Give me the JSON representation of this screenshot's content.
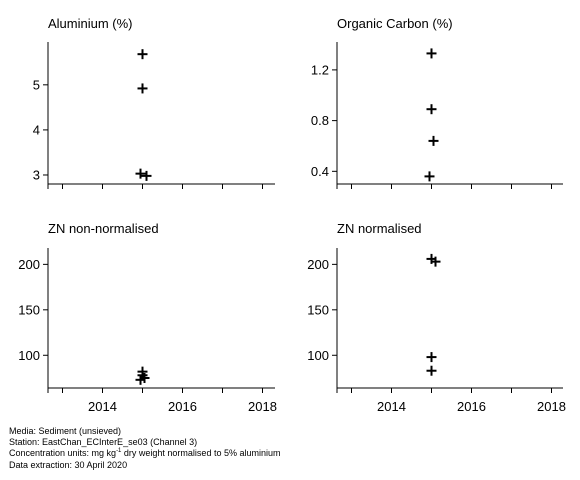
{
  "chart_data": [
    {
      "type": "scatter",
      "title": "Aluminium (%)",
      "xlabel": "",
      "ylabel": "",
      "xlim": [
        2012.6,
        2018.4
      ],
      "ylim": [
        2.8,
        5.95
      ],
      "yticks": [
        3,
        4,
        5
      ],
      "show_x_labels": false,
      "points": [
        {
          "x": 2015.0,
          "y": 5.68
        },
        {
          "x": 2015.0,
          "y": 4.92
        },
        {
          "x": 2014.95,
          "y": 3.03
        },
        {
          "x": 2015.1,
          "y": 2.98
        }
      ]
    },
    {
      "type": "scatter",
      "title": "Organic Carbon (%)",
      "xlabel": "",
      "ylabel": "",
      "xlim": [
        2012.6,
        2018.4
      ],
      "ylim": [
        0.3,
        1.42
      ],
      "yticks": [
        0.4,
        0.8,
        1.2
      ],
      "show_x_labels": false,
      "points": [
        {
          "x": 2015.0,
          "y": 1.33
        },
        {
          "x": 2015.0,
          "y": 0.89
        },
        {
          "x": 2015.05,
          "y": 0.64
        },
        {
          "x": 2014.95,
          "y": 0.36
        }
      ]
    },
    {
      "type": "scatter",
      "title": "ZN non-normalised",
      "xlabel": "",
      "ylabel": "",
      "xlim": [
        2012.6,
        2018.4
      ],
      "ylim": [
        64,
        218
      ],
      "yticks": [
        100,
        150,
        200
      ],
      "xticks": [
        2014,
        2016,
        2018
      ],
      "show_x_labels": true,
      "points": [
        {
          "x": 2015.0,
          "y": 82
        },
        {
          "x": 2015.0,
          "y": 78
        },
        {
          "x": 2015.05,
          "y": 75
        },
        {
          "x": 2014.95,
          "y": 73
        }
      ]
    },
    {
      "type": "scatter",
      "title": "ZN normalised",
      "xlabel": "",
      "ylabel": "",
      "xlim": [
        2012.6,
        2018.4
      ],
      "ylim": [
        64,
        218
      ],
      "yticks": [
        100,
        150,
        200
      ],
      "xticks": [
        2014,
        2016,
        2018
      ],
      "show_x_labels": true,
      "points": [
        {
          "x": 2015.0,
          "y": 206
        },
        {
          "x": 2015.1,
          "y": 203
        },
        {
          "x": 2015.0,
          "y": 98
        },
        {
          "x": 2015.0,
          "y": 83
        }
      ]
    }
  ],
  "x_minor_ticks": [
    2013,
    2014,
    2015,
    2016,
    2017,
    2018
  ],
  "footer": {
    "media": "Media: Sediment (unsieved)",
    "station": "Station: EastChan_ECInterE_se03 (Channel 3)",
    "units_prefix": "Concentration units:  mg kg",
    "units_sup": "-1",
    "units_suffix": " dry weight normalised to 5% aluminium",
    "extraction": "Data extraction: 30 April 2020"
  }
}
